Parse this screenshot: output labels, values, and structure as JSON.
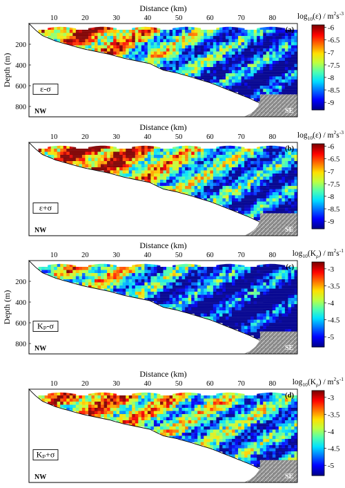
{
  "chart_data": [
    {
      "type": "heatmap",
      "panel_label": "(a)",
      "parameter_box": "ε-σ",
      "xlabel": "Distance (km)",
      "ylabel": "Depth (m)",
      "x_ticks": [
        "10",
        "20",
        "30",
        "40",
        "50",
        "60",
        "70",
        "80"
      ],
      "y_ticks": [
        "200",
        "400",
        "600",
        "800"
      ],
      "xlim": [
        2,
        88
      ],
      "ylim": [
        0,
        900
      ],
      "colorbar": {
        "label_main": "log",
        "label_sub": "10",
        "label_rest": "(ε) / m",
        "label_sup1": "2",
        "label_mid": "s",
        "label_sup2": "-3",
        "ticks": [
          "-6",
          "-6.5",
          "-7",
          "-7.5",
          "-8",
          "-8.5",
          "-9"
        ],
        "range": [
          -9.3,
          -5.9
        ]
      },
      "corner_left": "NW",
      "corner_right": "SE",
      "field_mean": [
        -6.6,
        -6.7,
        -6.2,
        -6.5,
        -7.2,
        -7.6,
        -7.9,
        -8.2,
        -8.5,
        -8.7,
        -8.9
      ]
    },
    {
      "type": "heatmap",
      "panel_label": "(b)",
      "parameter_box": "ε+σ",
      "xlabel": "Distance (km)",
      "ylabel": "",
      "x_ticks": [
        "10",
        "20",
        "30",
        "40",
        "50",
        "60",
        "70",
        "80"
      ],
      "y_ticks": [],
      "xlim": [
        2,
        88
      ],
      "ylim": [
        0,
        900
      ],
      "colorbar": {
        "label_main": "log",
        "label_sub": "10",
        "label_rest": "(ε) / m",
        "label_sup1": "2",
        "label_mid": "s",
        "label_sup2": "-3",
        "ticks": [
          "-6",
          "-6.5",
          "-7",
          "-7.5",
          "-8",
          "-8.5",
          "-9"
        ],
        "range": [
          -9.3,
          -5.9
        ]
      },
      "corner_left": "NW",
      "corner_right": "SE",
      "field_mean": [
        -6.1,
        -6.2,
        -6.0,
        -6.1,
        -6.6,
        -7.1,
        -7.6,
        -7.9,
        -8.2,
        -8.4,
        -8.6
      ]
    },
    {
      "type": "heatmap",
      "panel_label": "(c)",
      "parameter_box": "Kₚ-σ",
      "xlabel": "Distance (km)",
      "ylabel": "Depth (m)",
      "x_ticks": [
        "10",
        "20",
        "30",
        "40",
        "50",
        "60",
        "70",
        "80"
      ],
      "y_ticks": [
        "200",
        "400",
        "600",
        "800"
      ],
      "xlim": [
        2,
        88
      ],
      "ylim": [
        0,
        900
      ],
      "colorbar": {
        "label_main": "log",
        "label_sub": "10",
        "label_rest": "(K",
        "label_sub2": "ρ",
        "label_rest2": ") / m",
        "label_sup1": "2",
        "label_mid": "s",
        "label_sup2": "-1",
        "ticks": [
          "-3",
          "-3.5",
          "-4",
          "-4.5",
          "-5"
        ],
        "range": [
          -5.3,
          -2.8
        ]
      },
      "corner_left": "NW",
      "corner_right": "SE",
      "field_mean": [
        -3.8,
        -3.9,
        -3.5,
        -3.7,
        -4.2,
        -4.5,
        -4.7,
        -4.8,
        -5.0,
        -5.1,
        -5.2
      ]
    },
    {
      "type": "heatmap",
      "panel_label": "(d)",
      "parameter_box": "Kₚ+σ",
      "xlabel": "Distance (km)",
      "ylabel": "",
      "x_ticks": [
        "10",
        "20",
        "30",
        "40",
        "50",
        "60",
        "70",
        "80"
      ],
      "y_ticks": [],
      "xlim": [
        2,
        88
      ],
      "ylim": [
        0,
        900
      ],
      "colorbar": {
        "label_main": "log",
        "label_sub": "10",
        "label_rest": "(K",
        "label_sub2": "ρ",
        "label_rest2": ") / m",
        "label_sup1": "2",
        "label_mid": "s",
        "label_sup2": "-1",
        "ticks": [
          "-3",
          "-3.5",
          "-4",
          "-4.5",
          "-5"
        ],
        "range": [
          -5.3,
          -2.8
        ]
      },
      "corner_left": "NW",
      "corner_right": "SE",
      "field_mean": [
        -3.4,
        -3.5,
        -3.1,
        -3.3,
        -3.5,
        -3.8,
        -4.0,
        -4.1,
        -4.3,
        -4.4,
        -4.5
      ]
    }
  ],
  "colors": {
    "colormap": [
      "#00008f",
      "#0000ff",
      "#006fff",
      "#00dfff",
      "#50ffaf",
      "#bfff3f",
      "#ffdf00",
      "#ff6f00",
      "#ff0000",
      "#7f0000"
    ],
    "seafloor_rock": "#9a9a9a",
    "outline": "#000000"
  }
}
